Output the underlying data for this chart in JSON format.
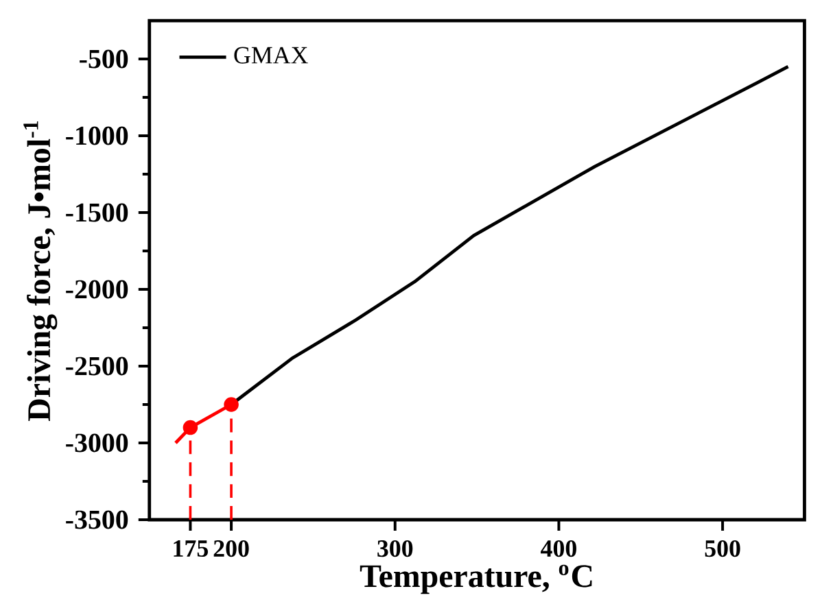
{
  "chart_data": {
    "type": "line",
    "xlabel": "Temperature, $^{o}$C",
    "ylabel": "Driving force, J•mol$^{-1}$",
    "xlim": [
      150,
      550
    ],
    "ylim": [
      -3500,
      -250
    ],
    "xticks": [
      175,
      200,
      300,
      400,
      500
    ],
    "yticks": [
      -3500,
      -3000,
      -2500,
      -2000,
      -1500,
      -1000,
      -500
    ],
    "legend": "top left",
    "grid": false,
    "series": [
      {
        "name": "GMAX",
        "color": "#000000",
        "x": [
          200,
          237,
          276,
          312,
          348,
          422,
          522,
          540
        ],
        "values": [
          -2750,
          -2450,
          -2200,
          -1950,
          -1650,
          -1200,
          -650,
          -550
        ],
        "marker": "none"
      },
      {
        "color": "#ff0000",
        "x": [
          166,
          175,
          200
        ],
        "values": [
          -3000,
          -2900,
          -2750
        ],
        "marker": "none"
      },
      {
        "type": "scatter",
        "color": "#ff0000",
        "x": [
          175,
          200
        ],
        "values": [
          -2900,
          -2750
        ],
        "marker": "circle"
      }
    ],
    "ref_lines": [
      {
        "axis": "x",
        "value": 175,
        "color": "#ff0000",
        "line_style": "dashed"
      },
      {
        "axis": "x",
        "value": 200,
        "color": "#ff0000",
        "line_style": "dashed"
      }
    ]
  }
}
